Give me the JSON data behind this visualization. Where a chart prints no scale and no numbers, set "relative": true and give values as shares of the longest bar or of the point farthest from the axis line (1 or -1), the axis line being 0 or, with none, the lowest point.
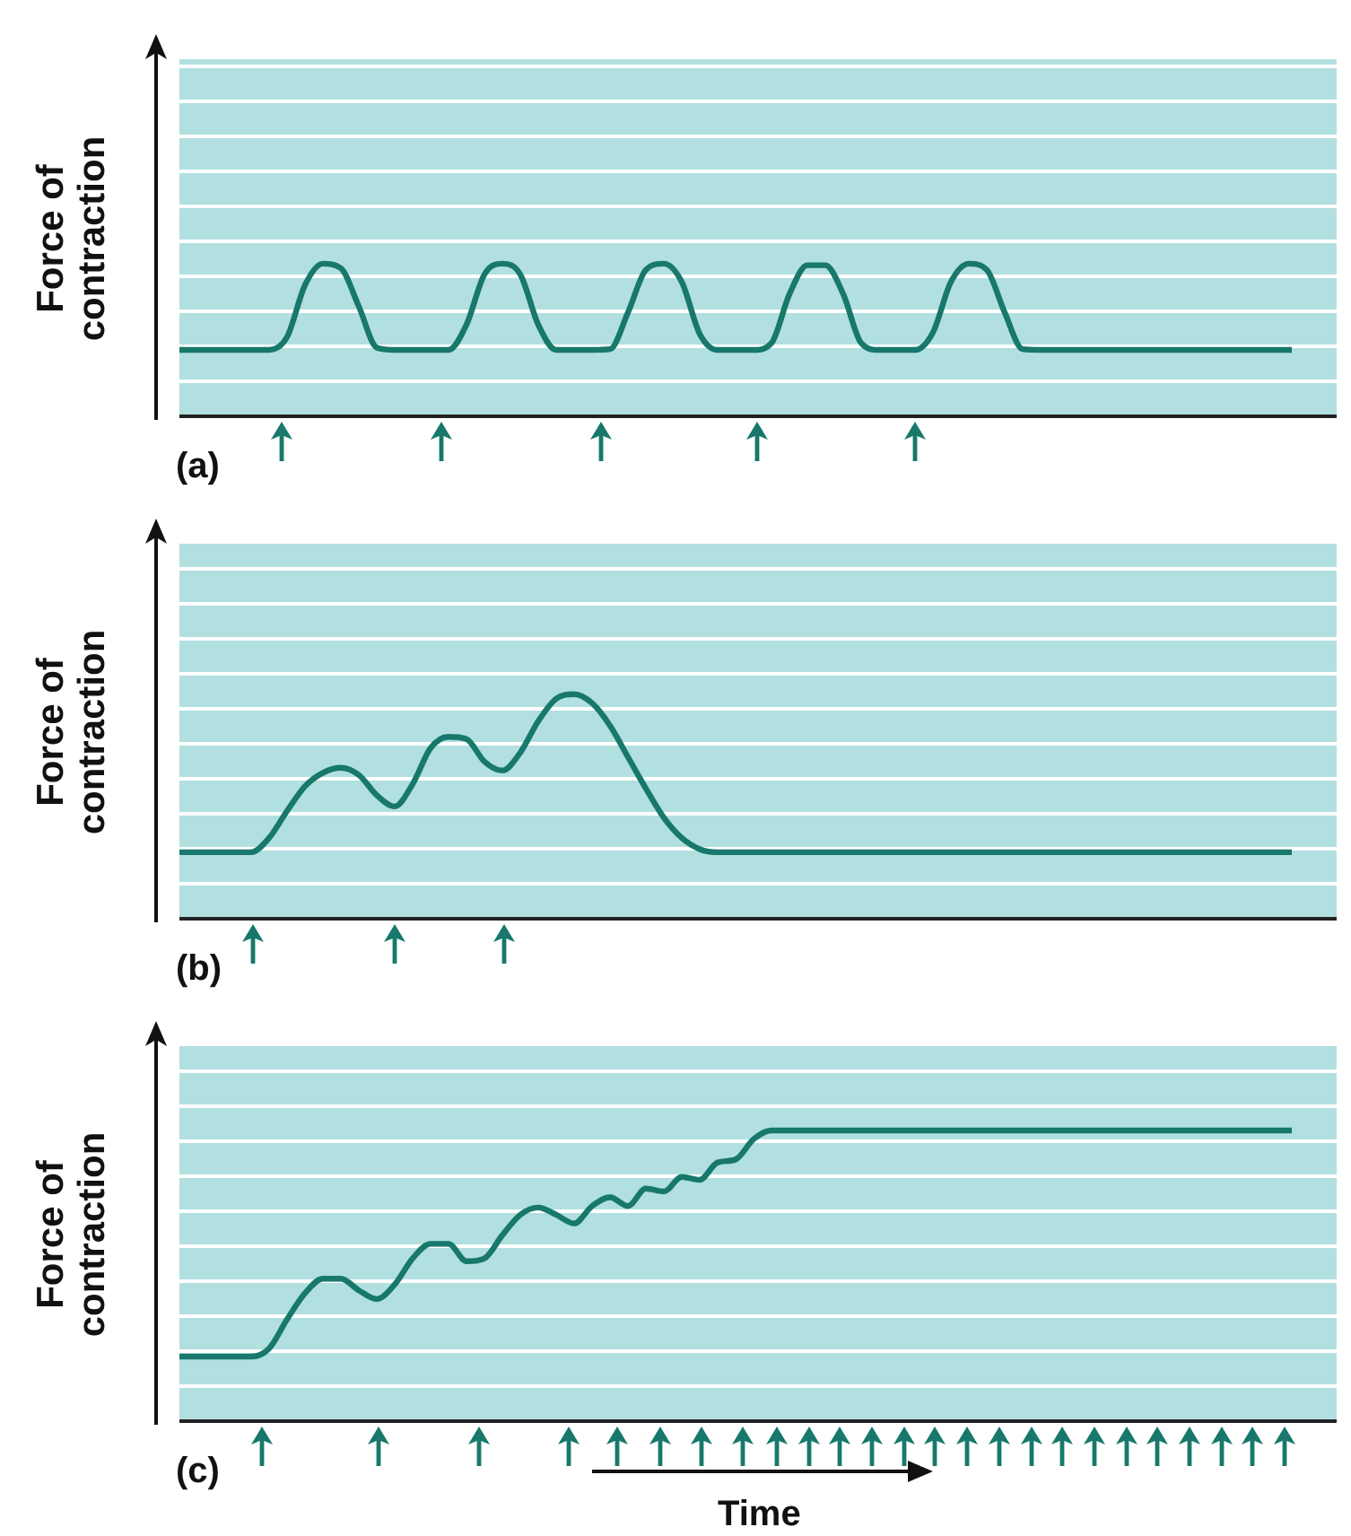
{
  "chart_data": [
    {
      "type": "line",
      "relative": true,
      "ylabel": "Force of contraction",
      "annotations": [
        "(a)"
      ],
      "color": "#17786b",
      "categories": [
        null,
        null,
        null,
        null,
        null,
        null,
        null,
        null,
        null,
        null,
        null,
        null,
        null,
        null,
        null,
        null,
        null,
        null,
        null,
        null,
        null,
        null,
        null,
        null,
        null,
        null,
        null,
        null,
        null,
        null,
        null,
        null,
        null,
        null,
        null,
        null,
        null,
        null,
        null,
        null,
        null,
        null,
        null,
        null,
        null,
        null,
        null,
        null,
        null,
        null,
        null,
        null,
        null,
        null,
        null,
        null,
        null,
        null,
        null,
        null,
        null,
        null,
        null
      ],
      "values": [
        0.435,
        0.435,
        0.435,
        0.435,
        0.435,
        0.435,
        0.52,
        0.86,
        1,
        0.97,
        0.72,
        0.45,
        0.435,
        0.435,
        0.435,
        0.435,
        0.6,
        0.93,
        1,
        0.93,
        0.6,
        0.435,
        0.435,
        0.435,
        0.44,
        0.68,
        0.96,
        1,
        0.88,
        0.54,
        0.435,
        0.435,
        0.435,
        0.48,
        0.8,
        0.99,
        0.99,
        0.8,
        0.48,
        0.435,
        0.435,
        0.435,
        0.55,
        0.88,
        1,
        0.96,
        0.68,
        0.44,
        0.435,
        0.435,
        0.435,
        0.435,
        0.435,
        0.435,
        0.435,
        0.435,
        0.435,
        0.435,
        0.435,
        0.435,
        0.435,
        0.435,
        0.435
      ]
    },
    {
      "type": "line",
      "relative": true,
      "ylabel": "Force of contraction",
      "annotations": [
        "(b)"
      ],
      "color": "#17786b",
      "categories": [
        null,
        null,
        null,
        null,
        null,
        null,
        null,
        null,
        null,
        null,
        null,
        null,
        null,
        null,
        null,
        null,
        null,
        null,
        null,
        null,
        null,
        null,
        null,
        null,
        null,
        null,
        null,
        null,
        null,
        null,
        null,
        null,
        null,
        null,
        null,
        null,
        null,
        null,
        null,
        null,
        null,
        null,
        null,
        null,
        null,
        null,
        null,
        null,
        null,
        null,
        null,
        null,
        null,
        null,
        null,
        null,
        null,
        null,
        null,
        null,
        null,
        null,
        null
      ],
      "values": [
        0.296,
        0.296,
        0.296,
        0.296,
        0.296,
        0.36,
        0.48,
        0.59,
        0.65,
        0.672,
        0.64,
        0.55,
        0.5,
        0.6,
        0.76,
        0.81,
        0.8,
        0.7,
        0.66,
        0.74,
        0.88,
        0.98,
        1,
        0.96,
        0.86,
        0.72,
        0.58,
        0.45,
        0.36,
        0.31,
        0.296,
        0.296,
        0.296,
        0.296,
        0.296,
        0.296,
        0.296,
        0.296,
        0.296,
        0.296,
        0.296,
        0.296,
        0.296,
        0.296,
        0.296,
        0.296,
        0.296,
        0.296,
        0.296,
        0.296,
        0.296,
        0.296,
        0.296,
        0.296,
        0.296,
        0.296,
        0.296,
        0.296,
        0.296,
        0.296,
        0.296,
        0.296,
        0.296
      ]
    },
    {
      "type": "line",
      "relative": true,
      "ylabel": "Force of contraction",
      "xlabel": "Time",
      "annotations": [
        "(c)"
      ],
      "color": "#17786b",
      "categories": [
        null,
        null,
        null,
        null,
        null,
        null,
        null,
        null,
        null,
        null,
        null,
        null,
        null,
        null,
        null,
        null,
        null,
        null,
        null,
        null,
        null,
        null,
        null,
        null,
        null,
        null,
        null,
        null,
        null,
        null,
        null,
        null,
        null,
        null,
        null,
        null,
        null,
        null,
        null,
        null,
        null,
        null,
        null,
        null,
        null,
        null,
        null,
        null,
        null,
        null,
        null,
        null,
        null,
        null,
        null,
        null,
        null,
        null,
        null,
        null,
        null,
        null,
        null
      ],
      "values": [
        0.222,
        0.222,
        0.222,
        0.222,
        0.222,
        0.25,
        0.35,
        0.44,
        0.49,
        0.49,
        0.45,
        0.42,
        0.47,
        0.56,
        0.61,
        0.61,
        0.55,
        0.56,
        0.64,
        0.71,
        0.735,
        0.71,
        0.68,
        0.74,
        0.77,
        0.74,
        0.8,
        0.79,
        0.84,
        0.83,
        0.89,
        0.9,
        0.97,
        1,
        1,
        1,
        1,
        1,
        1,
        1,
        1,
        1,
        1,
        1,
        1,
        1,
        1,
        1,
        1,
        1,
        1,
        1,
        1,
        1,
        1,
        1,
        1,
        1,
        1,
        1,
        1,
        1,
        1
      ]
    }
  ]
}
